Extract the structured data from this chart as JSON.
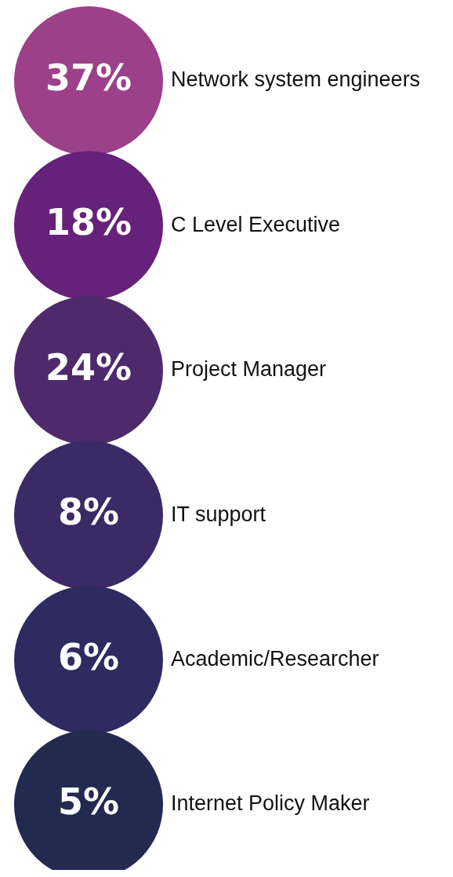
{
  "chart_data": {
    "type": "other",
    "categories": [
      "Network system engineers",
      "C Level Executive",
      "Project Manager",
      "IT support",
      "Academic/Researcher",
      "Internet Policy Maker"
    ],
    "values": [
      37,
      18,
      24,
      8,
      6,
      5
    ],
    "value_labels": [
      "37%",
      "18%",
      "24%",
      "8%",
      "6%",
      "5%"
    ],
    "colors": [
      "#9b4089",
      "#66217a",
      "#4e2a6c",
      "#3b2a66",
      "#2d2b5f",
      "#232a50"
    ]
  }
}
